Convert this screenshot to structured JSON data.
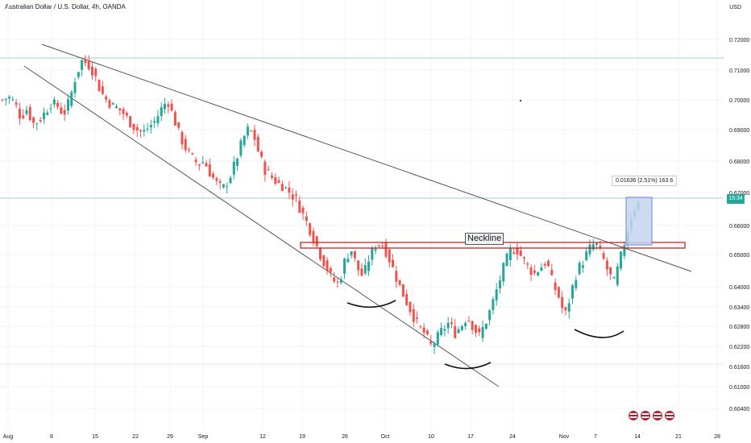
{
  "header": {
    "symbol_line": "Australian Dollar / U.S. Dollar, 4h, OANDA",
    "currency": "USD"
  },
  "colors": {
    "up": "#26a69a",
    "down": "#ef5350",
    "trendline": "#555555",
    "neckline_border": "#b71c1c",
    "measure_fill": "#c5d3ef",
    "measure_border": "#5b8bd6",
    "hline": "#a9c9cf"
  },
  "icons": [
    "economic-event-icon",
    "economic-event-icon",
    "economic-event-icon",
    "economic-event-icon"
  ],
  "chart_data": {
    "type": "candlestick",
    "y_axis": {
      "ticks": [
        "0.72000",
        "0.71000",
        "0.70000",
        "0.69000",
        "0.68000",
        "0.67000",
        "0.66000",
        "0.65000",
        "0.64000",
        "0.63400",
        "0.62800",
        "0.62200",
        "0.61600",
        "0.61000",
        "0.60400"
      ],
      "scale": "log"
    },
    "x_axis": {
      "ticks": [
        "Aug",
        "8",
        "15",
        "22",
        "29",
        "Sep",
        "12",
        "19",
        "26",
        "Oct",
        "10",
        "17",
        "24",
        "Nov",
        "7",
        "14",
        "21",
        "28"
      ]
    },
    "current_price_tag": "15:34",
    "annotations": {
      "neckline_label": "Neckline",
      "measure_label": "0.01636 (2.51%) 163.6"
    },
    "series_price_path": [
      0.7,
      0.701,
      0.699,
      0.694,
      0.697,
      0.692,
      0.693,
      0.696,
      0.699,
      0.698,
      0.695,
      0.7,
      0.708,
      0.713,
      0.712,
      0.709,
      0.703,
      0.7,
      0.698,
      0.697,
      0.695,
      0.692,
      0.69,
      0.689,
      0.691,
      0.693,
      0.697,
      0.7,
      0.694,
      0.688,
      0.684,
      0.681,
      0.679,
      0.68,
      0.676,
      0.673,
      0.671,
      0.674,
      0.679,
      0.685,
      0.69,
      0.689,
      0.682,
      0.677,
      0.675,
      0.673,
      0.672,
      0.67,
      0.668,
      0.664,
      0.66,
      0.655,
      0.65,
      0.646,
      0.642,
      0.641,
      0.648,
      0.652,
      0.646,
      0.643,
      0.649,
      0.653,
      0.654,
      0.65,
      0.645,
      0.64,
      0.636,
      0.632,
      0.628,
      0.626,
      0.622,
      0.624,
      0.627,
      0.629,
      0.626,
      0.628,
      0.631,
      0.628,
      0.625,
      0.629,
      0.634,
      0.64,
      0.646,
      0.651,
      0.652,
      0.649,
      0.646,
      0.644,
      0.646,
      0.648,
      0.641,
      0.637,
      0.631,
      0.638,
      0.645,
      0.648,
      0.652,
      0.654,
      0.65,
      0.645,
      0.641,
      0.648,
      0.656,
      0.664,
      0.667
    ]
  }
}
